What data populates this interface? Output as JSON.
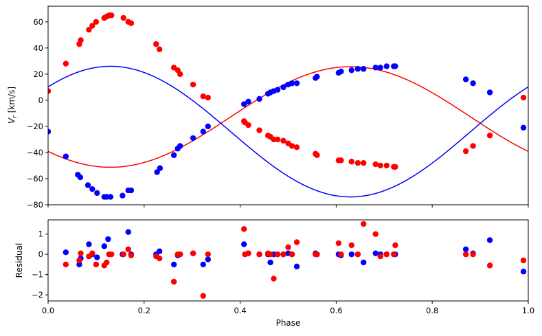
{
  "colors": {
    "primary": "#ff0000",
    "secondary": "#0000ff",
    "axis": "#000000"
  },
  "chart_data": [
    {
      "type": "scatter",
      "panel": "rv",
      "xlabel": "",
      "ylabel_main": "V",
      "ylabel_sub": "r",
      "ylabel_unit": " [km/s]",
      "xlim": [
        0,
        1
      ],
      "ylim": [
        -80,
        72
      ],
      "yticks": [
        -80,
        -60,
        -40,
        -20,
        0,
        20,
        40,
        60
      ],
      "xticks": [
        0,
        0.2,
        0.4,
        0.6,
        0.8,
        1.0
      ],
      "show_xticklabels": false,
      "grid": false,
      "series": [
        {
          "color": "#ff0000",
          "model": {
            "gamma": -12.8,
            "K": 38.5,
            "phase0": 0.38
          },
          "x": [
            0.0,
            0.037,
            0.065,
            0.068,
            0.085,
            0.092,
            0.1,
            0.117,
            0.122,
            0.127,
            0.132,
            0.157,
            0.167,
            0.173,
            0.225,
            0.232,
            0.262,
            0.27,
            0.275,
            0.302,
            0.323,
            0.333,
            0.408,
            0.41,
            0.417,
            0.44,
            0.458,
            0.463,
            0.47,
            0.478,
            0.49,
            0.5,
            0.508,
            0.518,
            0.557,
            0.56,
            0.605,
            0.61,
            0.632,
            0.645,
            0.657,
            0.682,
            0.692,
            0.705,
            0.72,
            0.723,
            0.87,
            0.885,
            0.92,
            0.99
          ],
          "y": [
            7,
            28,
            43,
            46,
            54,
            57,
            60,
            63,
            64,
            65,
            65,
            63,
            60,
            59,
            43,
            39,
            25,
            23,
            20,
            12,
            3,
            2,
            -16,
            -17,
            -19,
            -23,
            -27,
            -28,
            -30,
            -30,
            -31,
            -33,
            -35,
            -36,
            -41,
            -42,
            -46,
            -46,
            -47,
            -48,
            -48,
            -49,
            -50,
            -50,
            -51,
            -51,
            -39,
            -35,
            -27,
            2
          ]
        },
        {
          "color": "#0000ff",
          "model": {
            "gamma": -24.0,
            "K": 50.0,
            "phase0": 0.88
          },
          "x": [
            0.0,
            0.037,
            0.062,
            0.067,
            0.083,
            0.092,
            0.102,
            0.117,
            0.122,
            0.13,
            0.155,
            0.167,
            0.173,
            0.227,
            0.233,
            0.262,
            0.27,
            0.275,
            0.302,
            0.323,
            0.333,
            0.408,
            0.417,
            0.44,
            0.458,
            0.463,
            0.47,
            0.478,
            0.49,
            0.5,
            0.508,
            0.518,
            0.557,
            0.56,
            0.605,
            0.61,
            0.632,
            0.645,
            0.657,
            0.682,
            0.692,
            0.705,
            0.72,
            0.723,
            0.87,
            0.885,
            0.92,
            0.99
          ],
          "y": [
            -24,
            -43,
            -57,
            -59,
            -65,
            -68,
            -71,
            -74,
            -74,
            -74,
            -73,
            -69,
            -69,
            -55,
            -52,
            -42,
            -37,
            -35,
            -29,
            -24,
            -20,
            -3,
            -1,
            1,
            5,
            6,
            7,
            8,
            10,
            12,
            13,
            13,
            17,
            18,
            21,
            22,
            23,
            24,
            24,
            25,
            25,
            26,
            26,
            26,
            16,
            13,
            6,
            -21
          ]
        }
      ]
    },
    {
      "type": "scatter",
      "panel": "residual",
      "xlabel": "Phase",
      "ylabel": "Residual",
      "xlim": [
        0,
        1
      ],
      "ylim": [
        -2.3,
        1.7
      ],
      "yticks": [
        -2,
        -1,
        0,
        1
      ],
      "xticks": [
        0,
        0.2,
        0.4,
        0.6,
        0.8,
        1.0
      ],
      "xticklabels": [
        "0.0",
        "0.2",
        "0.4",
        "0.6",
        "0.8",
        "1.0"
      ],
      "grid": false,
      "series": [
        {
          "color": "#0000ff",
          "x": [
            0.037,
            0.065,
            0.068,
            0.085,
            0.092,
            0.102,
            0.117,
            0.125,
            0.155,
            0.167,
            0.173,
            0.225,
            0.232,
            0.262,
            0.27,
            0.275,
            0.302,
            0.323,
            0.333,
            0.408,
            0.417,
            0.44,
            0.458,
            0.463,
            0.47,
            0.478,
            0.49,
            0.5,
            0.508,
            0.518,
            0.557,
            0.56,
            0.605,
            0.61,
            0.632,
            0.645,
            0.657,
            0.682,
            0.692,
            0.705,
            0.72,
            0.723,
            0.87,
            0.885,
            0.92,
            0.99
          ],
          "y": [
            0.1,
            -0.5,
            -0.2,
            0.5,
            0.0,
            -0.15,
            0.4,
            0.75,
            0.0,
            1.1,
            0.0,
            0.0,
            0.15,
            -0.5,
            -0.05,
            0.0,
            0.05,
            -0.5,
            -0.25,
            0.5,
            0.05,
            0.0,
            0.0,
            -0.4,
            0.0,
            0.0,
            0.0,
            0.05,
            0.0,
            -0.6,
            0.05,
            0.0,
            0.0,
            -0.05,
            0.0,
            0.0,
            -0.4,
            0.05,
            0.0,
            0.0,
            0.0,
            0.0,
            0.25,
            0.05,
            0.7,
            -0.85
          ]
        },
        {
          "color": "#ff0000",
          "x": [
            0.037,
            0.065,
            0.068,
            0.085,
            0.092,
            0.1,
            0.117,
            0.122,
            0.127,
            0.132,
            0.157,
            0.167,
            0.173,
            0.225,
            0.232,
            0.262,
            0.27,
            0.275,
            0.302,
            0.323,
            0.333,
            0.408,
            0.41,
            0.417,
            0.44,
            0.458,
            0.463,
            0.47,
            0.478,
            0.49,
            0.5,
            0.508,
            0.518,
            0.557,
            0.56,
            0.605,
            0.61,
            0.632,
            0.645,
            0.657,
            0.682,
            0.692,
            0.705,
            0.72,
            0.723,
            0.87,
            0.885,
            0.92,
            0.99
          ],
          "y": [
            -0.5,
            -0.3,
            0.05,
            -0.1,
            0.05,
            -0.5,
            -0.55,
            -0.4,
            0.0,
            0.0,
            0.0,
            0.25,
            -0.05,
            -0.1,
            -0.2,
            -1.35,
            0.0,
            0.0,
            0.05,
            -2.05,
            0.0,
            1.25,
            0.0,
            0.05,
            0.0,
            0.05,
            0.0,
            -1.2,
            0.0,
            0.0,
            0.35,
            0.0,
            0.6,
            0.0,
            0.0,
            0.55,
            0.0,
            0.45,
            0.0,
            1.5,
            1.0,
            -0.1,
            0.0,
            0.0,
            0.45,
            0.0,
            0.0,
            -0.55,
            -0.3
          ]
        }
      ]
    }
  ]
}
